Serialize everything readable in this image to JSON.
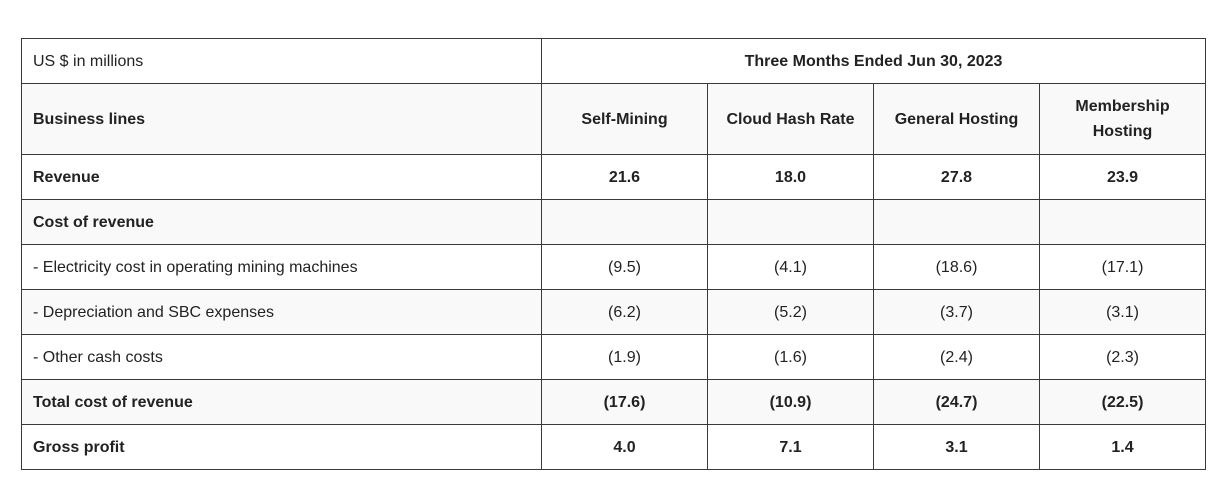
{
  "table": {
    "unit_label": "US $ in millions",
    "period_label": "Three Months Ended Jun 30, 2023",
    "header": {
      "label": "Business lines",
      "columns": [
        "Self-Mining",
        "Cloud Hash Rate",
        "General Hosting",
        "Membership Hosting"
      ]
    },
    "rows": [
      {
        "label": "Revenue",
        "values": [
          "21.6",
          "18.0",
          "27.8",
          "23.9"
        ],
        "bold": true
      },
      {
        "label": "Cost of revenue",
        "values": [
          "",
          "",
          "",
          ""
        ],
        "bold": true
      },
      {
        "label": "- Electricity cost in operating mining machines",
        "values": [
          "(9.5)",
          "(4.1)",
          "(18.6)",
          "(17.1)"
        ],
        "bold": false
      },
      {
        "label": "- Depreciation and SBC expenses",
        "values": [
          "(6.2)",
          "(5.2)",
          "(3.7)",
          "(3.1)"
        ],
        "bold": false
      },
      {
        "label": "- Other cash costs",
        "values": [
          "(1.9)",
          "(1.6)",
          "(2.4)",
          "(2.3)"
        ],
        "bold": false
      },
      {
        "label": "Total cost of revenue",
        "values": [
          "(17.6)",
          "(10.9)",
          "(24.7)",
          "(22.5)"
        ],
        "bold": true
      },
      {
        "label": "Gross profit",
        "values": [
          "4.0",
          "7.1",
          "3.1",
          "1.4"
        ],
        "bold": true
      }
    ]
  }
}
